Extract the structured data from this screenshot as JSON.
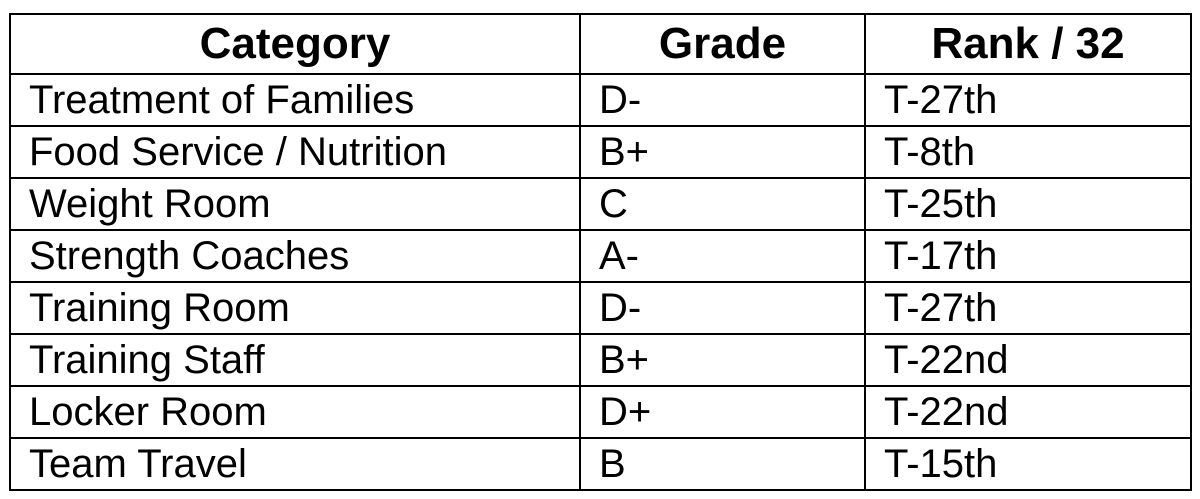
{
  "table": {
    "headers": [
      "Category",
      "Grade",
      "Rank / 32"
    ],
    "rows": [
      {
        "category": "Treatment of Families",
        "grade": "D-",
        "rank": "T-27th"
      },
      {
        "category": "Food Service / Nutrition",
        "grade": "B+",
        "rank": "T-8th"
      },
      {
        "category": "Weight Room",
        "grade": "C",
        "rank": "T-25th"
      },
      {
        "category": "Strength Coaches",
        "grade": "A-",
        "rank": "T-17th"
      },
      {
        "category": "Training Room",
        "grade": "D-",
        "rank": "T-27th"
      },
      {
        "category": "Training Staff",
        "grade": "B+",
        "rank": "T-22nd"
      },
      {
        "category": "Locker Room",
        "grade": "D+",
        "rank": "T-22nd"
      },
      {
        "category": "Team Travel",
        "grade": "B",
        "rank": "T-15th"
      }
    ]
  }
}
